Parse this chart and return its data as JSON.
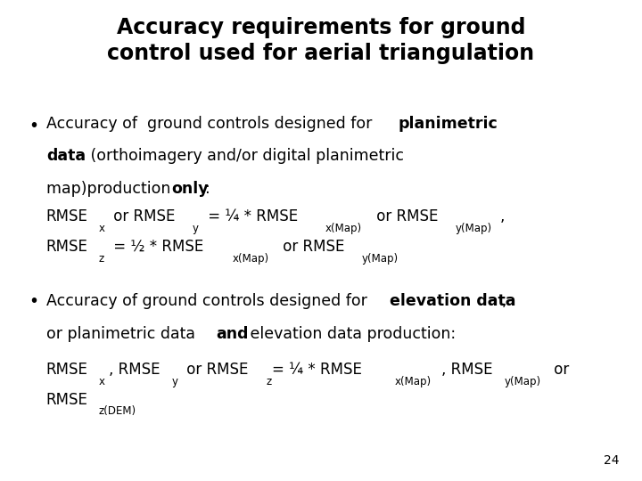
{
  "title_line1": "Accuracy requirements for ground",
  "title_line2": "control used for aerial triangulation",
  "background_color": "#ffffff",
  "text_color": "#000000",
  "title_fontsize": 17,
  "body_fontsize": 12.5,
  "formula_fontsize": 12,
  "formula_sub_fontsize": 8.5,
  "slide_number": "24"
}
